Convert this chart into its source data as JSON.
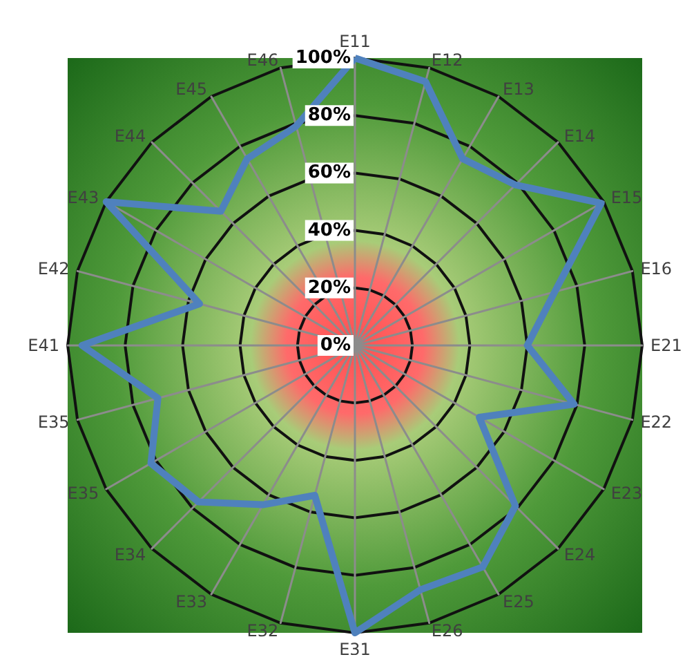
{
  "chart_data": {
    "type": "radar",
    "categories": [
      "E11",
      "E12",
      "E13",
      "E14",
      "E15",
      "E16",
      "E21",
      "E22",
      "E23",
      "E24",
      "E25",
      "E26",
      "E31",
      "E32",
      "E33",
      "E34",
      "E35",
      "E35",
      "E41",
      "E42",
      "E43",
      "E44",
      "E45",
      "E46"
    ],
    "series": [
      {
        "color": "#4f81bd",
        "values": [
          100,
          95,
          75,
          79,
          99,
          72,
          60,
          79,
          50,
          79,
          89,
          88,
          100,
          54,
          64,
          77,
          82,
          71,
          95,
          56,
          100,
          66,
          75,
          79
        ]
      }
    ],
    "ylim": [
      0,
      100
    ],
    "yticks": [
      {
        "value": 0,
        "label": "0%"
      },
      {
        "value": 20,
        "label": "20%"
      },
      {
        "value": 40,
        "label": "40%"
      },
      {
        "value": 60,
        "label": "60%"
      },
      {
        "value": 80,
        "label": "80%"
      },
      {
        "value": 100,
        "label": "100%"
      }
    ],
    "grid": true,
    "marker": "none",
    "line_style": "solid"
  }
}
